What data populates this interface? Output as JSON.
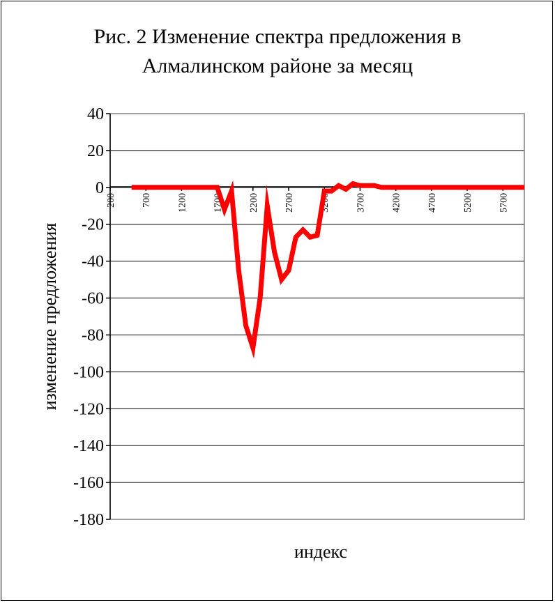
{
  "chart_data": {
    "type": "line",
    "title_line1": "Рис. 2 Изменение спектра предложения в",
    "title_line2": "Алмалинском районе за месяц",
    "xlabel": "индекс",
    "ylabel": "изменение предложения",
    "ylim": [
      -180,
      40
    ],
    "xlim": [
      200,
      6000
    ],
    "yticks": [
      "40",
      "20",
      "0",
      "-20",
      "-40",
      "-60",
      "-80",
      "-100",
      "-120",
      "-140",
      "-160",
      "-180"
    ],
    "xticks": [
      "200",
      "700",
      "1200",
      "1700",
      "2200",
      "2700",
      "3200",
      "3700",
      "4200",
      "4700",
      "5200",
      "5700"
    ],
    "grid": true,
    "line_color": "#ff0000",
    "series": [
      {
        "x": [
          500,
          600,
          700,
          800,
          900,
          1000,
          1100,
          1200,
          1300,
          1400,
          1500,
          1600,
          1700,
          1800,
          1900,
          2000,
          2100,
          2200,
          2300,
          2400,
          2500,
          2600,
          2700,
          2800,
          2900,
          3000,
          3100,
          3200,
          3300,
          3400,
          3500,
          3600,
          3700,
          3800,
          3900,
          4000,
          4100,
          4200,
          4300,
          4400,
          4500,
          4600,
          4700,
          4800,
          4900,
          5000,
          5100,
          5200,
          5300,
          5400,
          5500,
          5600,
          5700,
          5800,
          5900,
          6000
        ],
        "values": [
          0,
          0,
          0,
          0,
          0,
          0,
          0,
          0,
          0,
          0,
          0,
          0,
          0,
          -12,
          -2,
          -45,
          -75,
          -87,
          -60,
          -10,
          -35,
          -50,
          -45,
          -27,
          -23,
          -27,
          -26,
          -2,
          -2,
          1,
          -1,
          2,
          1,
          1,
          1,
          0,
          0,
          0,
          0,
          0,
          0,
          0,
          0,
          0,
          0,
          0,
          0,
          0,
          0,
          0,
          0,
          0,
          0,
          0,
          0,
          0
        ]
      }
    ]
  }
}
